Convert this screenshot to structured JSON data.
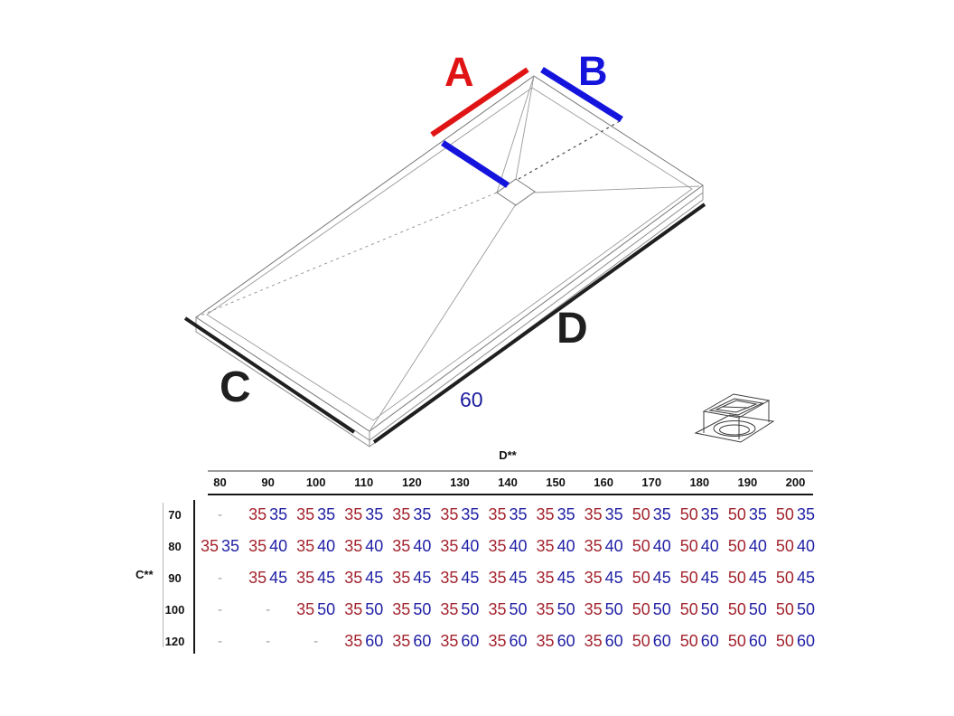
{
  "colors": {
    "diagram_red": "#e01414",
    "diagram_blue": "#1414dd",
    "measure_black": "#1f1f1f",
    "table_red": "#a3242e",
    "table_blue": "#2121a6",
    "depth_blue": "#1a1a9e",
    "dash_gray": "#9a9a9a"
  },
  "diagram": {
    "label_a": "A",
    "label_b": "B",
    "label_c": "C",
    "label_d": "D",
    "depth_label": "60",
    "icons": {
      "drain": "drain-grate-icon"
    }
  },
  "table": {
    "col_axis_label": "D**",
    "row_axis_label": "C**",
    "columns": [
      "80",
      "90",
      "100",
      "110",
      "120",
      "130",
      "140",
      "150",
      "160",
      "170",
      "180",
      "190",
      "200"
    ],
    "rows": [
      {
        "label": "70",
        "cells": [
          "-",
          [
            "35",
            "35"
          ],
          [
            "35",
            "35"
          ],
          [
            "35",
            "35"
          ],
          [
            "35",
            "35"
          ],
          [
            "35",
            "35"
          ],
          [
            "35",
            "35"
          ],
          [
            "35",
            "35"
          ],
          [
            "35",
            "35"
          ],
          [
            "50",
            "35"
          ],
          [
            "50",
            "35"
          ],
          [
            "50",
            "35"
          ],
          [
            "50",
            "35"
          ]
        ]
      },
      {
        "label": "80",
        "cells": [
          [
            "35",
            "35"
          ],
          [
            "35",
            "40"
          ],
          [
            "35",
            "40"
          ],
          [
            "35",
            "40"
          ],
          [
            "35",
            "40"
          ],
          [
            "35",
            "40"
          ],
          [
            "35",
            "40"
          ],
          [
            "35",
            "40"
          ],
          [
            "35",
            "40"
          ],
          [
            "50",
            "40"
          ],
          [
            "50",
            "40"
          ],
          [
            "50",
            "40"
          ],
          [
            "50",
            "40"
          ]
        ]
      },
      {
        "label": "90",
        "cells": [
          "-",
          [
            "35",
            "45"
          ],
          [
            "35",
            "45"
          ],
          [
            "35",
            "45"
          ],
          [
            "35",
            "45"
          ],
          [
            "35",
            "45"
          ],
          [
            "35",
            "45"
          ],
          [
            "35",
            "45"
          ],
          [
            "35",
            "45"
          ],
          [
            "50",
            "45"
          ],
          [
            "50",
            "45"
          ],
          [
            "50",
            "45"
          ],
          [
            "50",
            "45"
          ]
        ]
      },
      {
        "label": "100",
        "cells": [
          "-",
          "-",
          [
            "35",
            "50"
          ],
          [
            "35",
            "50"
          ],
          [
            "35",
            "50"
          ],
          [
            "35",
            "50"
          ],
          [
            "35",
            "50"
          ],
          [
            "35",
            "50"
          ],
          [
            "35",
            "50"
          ],
          [
            "50",
            "50"
          ],
          [
            "50",
            "50"
          ],
          [
            "50",
            "50"
          ],
          [
            "50",
            "50"
          ]
        ]
      },
      {
        "label": "120",
        "cells": [
          "-",
          "-",
          "-",
          [
            "35",
            "60"
          ],
          [
            "35",
            "60"
          ],
          [
            "35",
            "60"
          ],
          [
            "35",
            "60"
          ],
          [
            "35",
            "60"
          ],
          [
            "35",
            "60"
          ],
          [
            "50",
            "60"
          ],
          [
            "50",
            "60"
          ],
          [
            "50",
            "60"
          ],
          [
            "50",
            "60"
          ]
        ]
      }
    ]
  }
}
